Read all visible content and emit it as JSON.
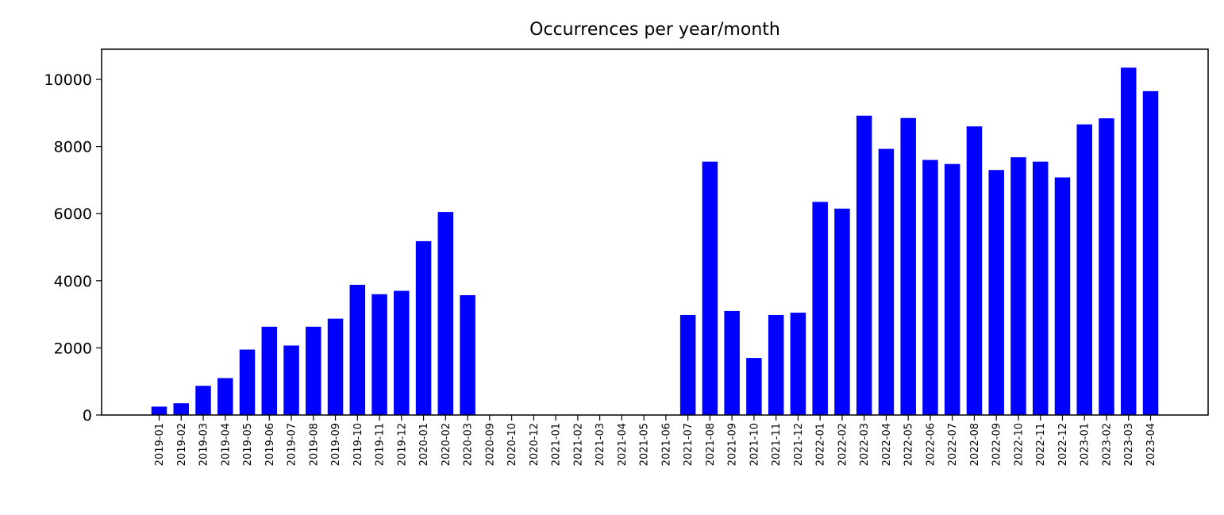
{
  "chart_data": {
    "type": "bar",
    "title": "Occurrences per year/month",
    "xlabel": "",
    "ylabel": "",
    "ylim": [
      0,
      10900
    ],
    "yticks": [
      0,
      2000,
      4000,
      6000,
      8000,
      10000
    ],
    "grid": false,
    "bar_color": "#0000ff",
    "categories": [
      "2019-01",
      "2019-02",
      "2019-03",
      "2019-04",
      "2019-05",
      "2019-06",
      "2019-07",
      "2019-08",
      "2019-09",
      "2019-10",
      "2019-11",
      "2019-12",
      "2020-01",
      "2020-02",
      "2020-03",
      "2020-09",
      "2020-10",
      "2020-12",
      "2021-01",
      "2021-02",
      "2021-03",
      "2021-04",
      "2021-05",
      "2021-06",
      "2021-07",
      "2021-08",
      "2021-09",
      "2021-10",
      "2021-11",
      "2021-12",
      "2022-01",
      "2022-02",
      "2022-03",
      "2022-04",
      "2022-05",
      "2022-06",
      "2022-07",
      "2022-08",
      "2022-09",
      "2022-10",
      "2022-11",
      "2022-12",
      "2023-01",
      "2023-02",
      "2023-03",
      "2023-04"
    ],
    "values": [
      250,
      350,
      870,
      1100,
      1950,
      2630,
      2070,
      2630,
      2870,
      3880,
      3600,
      3700,
      5180,
      6050,
      3570,
      0,
      0,
      0,
      0,
      0,
      0,
      0,
      0,
      0,
      2980,
      7550,
      3100,
      1700,
      2980,
      3050,
      6350,
      6150,
      8920,
      7930,
      8850,
      7600,
      7480,
      8600,
      7300,
      7680,
      7550,
      7080,
      8660,
      8840,
      10350,
      9650
    ]
  }
}
